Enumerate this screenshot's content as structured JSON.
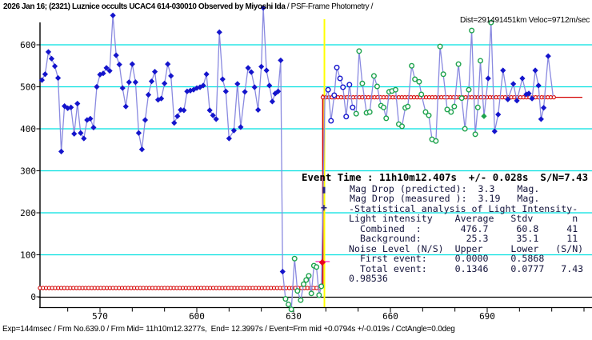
{
  "title": {
    "main_bold": "2026 Jan 16; (2321) Luznice occults UCAC4 614-030010 Observed by Miyoshi Ida",
    "main_regular": " / PSF-Frame Photometry /",
    "sub": "Dist=291491451km Veloc=9712m/sec"
  },
  "event_block": {
    "event_time": "Event Time : 11h10m12.407s  +/- 0.028s  S/N=7.43",
    "mag_lines": "Mag Drop (predicted):  3.3    Mag.\nMag Drop (measured ):  3.19   Mag.",
    "stats_lines": "-Statistical analysis of Light Intensity-\nLight intensity    Average   Stdv       n\n  Combined  :       476.7     60.8     41\n  Background:        25.3     35.1     11\nNoise Level (N/S)  Upper     Lower   (S/N)\n  First event:     0.0000    0.5868\n  Total event:     0.1346    0.0777   7.43\n0.98536"
  },
  "status_bar": "Exp=144msec / Frm No.639.0 / Frm Mid= 11h10m12.3277s,  End= 12.3997s / Event=Frm mid +0.0794s +/-0.019s / CctAngle=0.0deg",
  "chart_data": {
    "type": "line",
    "xlim": [
      551,
      722
    ],
    "ylim": [
      -27,
      650
    ],
    "x_ticks": [
      570,
      600,
      630,
      660,
      690
    ],
    "x_minor_range": [
      560,
      720
    ],
    "x_minor_step": 10,
    "y_ticks": [
      0,
      100,
      200,
      300,
      400,
      500,
      600
    ],
    "grid_color": "#00e0e0",
    "axis_color": "#000000",
    "marker_colors": {
      "blue": "#1414cc",
      "green": "#1ea34d"
    },
    "event_time_line": {
      "frame": 639.55,
      "color": "#ffff00"
    },
    "model": {
      "color": "#d40000",
      "baseline": {
        "value": 21,
        "from": 551.4,
        "to": 638.9
      },
      "transition_frame": 639.05,
      "plateau": {
        "value": 475,
        "from": 639.05,
        "to": 711
      },
      "plateau_line_to": 719.5
    },
    "annotations": {
      "error_bar": {
        "frames": [
          636.8,
          641.2
        ],
        "value": 84,
        "color": "#ff57c8"
      },
      "event_point": {
        "frame": 638.9,
        "value": 82,
        "color": "#e8001c"
      },
      "tick_marker": {
        "frame": 639.4,
        "value": 254
      },
      "plus_marker": {
        "frame": 639.4,
        "value": 212
      },
      "marker_color": "#26267e"
    },
    "series": [
      {
        "name": "light-curve",
        "line_color": "#8a8ae0",
        "points": [
          [
            552,
            516,
            "b"
          ],
          [
            553,
            530,
            "b"
          ],
          [
            554,
            583,
            "b"
          ],
          [
            555,
            567,
            "b"
          ],
          [
            556,
            549,
            "b"
          ],
          [
            557,
            521,
            "b"
          ],
          [
            558,
            346,
            "b"
          ],
          [
            559,
            454,
            "b"
          ],
          [
            560,
            449,
            "b"
          ],
          [
            561,
            451,
            "b"
          ],
          [
            562,
            388,
            "b"
          ],
          [
            563,
            460,
            "b"
          ],
          [
            564,
            390,
            "b"
          ],
          [
            565,
            377,
            "b"
          ],
          [
            566,
            421,
            "b"
          ],
          [
            567,
            424,
            "b"
          ],
          [
            568,
            403,
            "b"
          ],
          [
            569,
            500,
            "b"
          ],
          [
            570,
            529,
            "b"
          ],
          [
            571,
            532,
            "b"
          ],
          [
            572,
            545,
            "b"
          ],
          [
            573,
            538,
            "b"
          ],
          [
            574,
            670,
            "b"
          ],
          [
            575,
            575,
            "b"
          ],
          [
            576,
            553,
            "b"
          ],
          [
            577,
            497,
            "b"
          ],
          [
            578,
            453,
            "b"
          ],
          [
            579,
            511,
            "b"
          ],
          [
            580,
            554,
            "b"
          ],
          [
            581,
            511,
            "b"
          ],
          [
            582,
            390,
            "b"
          ],
          [
            583,
            351,
            "b"
          ],
          [
            584,
            421,
            "b"
          ],
          [
            585,
            481,
            "b"
          ],
          [
            586,
            513,
            "b"
          ],
          [
            587,
            536,
            "b"
          ],
          [
            588,
            469,
            "b"
          ],
          [
            589,
            472,
            "b"
          ],
          [
            590,
            508,
            "b"
          ],
          [
            591,
            554,
            "b"
          ],
          [
            592,
            526,
            "b"
          ],
          [
            593,
            414,
            "b"
          ],
          [
            594,
            430,
            "b"
          ],
          [
            595,
            445,
            "b"
          ],
          [
            596,
            444,
            "b"
          ],
          [
            597,
            489,
            "b"
          ],
          [
            598,
            491,
            "b"
          ],
          [
            599,
            493,
            "b"
          ],
          [
            600,
            497,
            "b"
          ],
          [
            601,
            499,
            "b"
          ],
          [
            602,
            503,
            "b"
          ],
          [
            603,
            530,
            "b"
          ],
          [
            604,
            444,
            "b"
          ],
          [
            605,
            432,
            "b"
          ],
          [
            606,
            423,
            "b"
          ],
          [
            607,
            630,
            "b"
          ],
          [
            608,
            518,
            "b"
          ],
          [
            609,
            489,
            "b"
          ],
          [
            610,
            377,
            "b"
          ],
          [
            611.5,
            396,
            "b"
          ],
          [
            612.6,
            507,
            "b"
          ],
          [
            613.6,
            404,
            "b"
          ],
          [
            614.9,
            488,
            "b"
          ],
          [
            615.9,
            545,
            "b"
          ],
          [
            616.9,
            535,
            "b"
          ],
          [
            617.9,
            499,
            "b"
          ],
          [
            619,
            445,
            "b"
          ],
          [
            620,
            548,
            "b"
          ],
          [
            620.6,
            688,
            "b"
          ],
          [
            621.6,
            539,
            "b"
          ],
          [
            622.5,
            503,
            "b"
          ],
          [
            623.4,
            465,
            "b"
          ],
          [
            624.3,
            484,
            "b"
          ],
          [
            625.2,
            489,
            "b"
          ],
          [
            626,
            563,
            "b"
          ],
          [
            626.6,
            60,
            "b"
          ],
          [
            627.5,
            -5,
            "g"
          ],
          [
            628.4,
            -18,
            "g"
          ],
          [
            629.3,
            -30,
            "g"
          ],
          [
            630.3,
            91,
            "g"
          ],
          [
            631.2,
            14,
            "g"
          ],
          [
            632.2,
            -8,
            "g"
          ],
          [
            633.1,
            30,
            "g"
          ],
          [
            633.9,
            40,
            "g"
          ],
          [
            634.7,
            50,
            "g"
          ],
          [
            635.5,
            8,
            "g"
          ],
          [
            636.3,
            74,
            "g"
          ],
          [
            637.1,
            71,
            "g"
          ],
          [
            637.9,
            4,
            "g"
          ],
          [
            638.6,
            25,
            "g"
          ],
          [
            639.7,
            470,
            "n"
          ],
          [
            640.7,
            493,
            "o"
          ],
          [
            641.6,
            419,
            "o"
          ],
          [
            642.6,
            480,
            "o"
          ],
          [
            643.4,
            546,
            "o"
          ],
          [
            644.4,
            520,
            "o"
          ],
          [
            645.3,
            499,
            "o"
          ],
          [
            646.3,
            429,
            "o"
          ],
          [
            647.3,
            505,
            "o"
          ],
          [
            648.3,
            451,
            "o"
          ],
          [
            649.4,
            436,
            "g"
          ],
          [
            650.3,
            585,
            "g"
          ],
          [
            651.3,
            508,
            "g"
          ],
          [
            652.6,
            438,
            "g"
          ],
          [
            653.6,
            440,
            "g"
          ],
          [
            654.9,
            526,
            "g"
          ],
          [
            655.9,
            501,
            "g"
          ],
          [
            657.1,
            455,
            "g"
          ],
          [
            657.9,
            451,
            "g"
          ],
          [
            658.7,
            425,
            "g"
          ],
          [
            659.6,
            488,
            "g"
          ],
          [
            660.5,
            490,
            "g"
          ],
          [
            661.6,
            493,
            "g"
          ],
          [
            662.6,
            411,
            "g"
          ],
          [
            663.6,
            406,
            "g"
          ],
          [
            664.6,
            450,
            "g"
          ],
          [
            665.4,
            453,
            "g"
          ],
          [
            666.6,
            550,
            "g"
          ],
          [
            667.6,
            518,
            "g"
          ],
          [
            668.9,
            512,
            "g"
          ],
          [
            669.6,
            482,
            "g"
          ],
          [
            670.9,
            440,
            "g"
          ],
          [
            671.9,
            432,
            "g"
          ],
          [
            672.9,
            375,
            "g"
          ],
          [
            674.1,
            371,
            "g"
          ],
          [
            675.4,
            596,
            "g"
          ],
          [
            676.4,
            530,
            "g"
          ],
          [
            677.6,
            446,
            "g"
          ],
          [
            678.8,
            440,
            "g"
          ],
          [
            679.8,
            453,
            "g"
          ],
          [
            681.1,
            554,
            "g"
          ],
          [
            682.1,
            473,
            "g"
          ],
          [
            683.1,
            400,
            "g"
          ],
          [
            684.3,
            493,
            "g"
          ],
          [
            685.2,
            634,
            "g"
          ],
          [
            686.3,
            387,
            "g"
          ],
          [
            687.1,
            451,
            "g"
          ],
          [
            687.9,
            562,
            "g"
          ],
          [
            689,
            430,
            "G"
          ],
          [
            690.3,
            520,
            "b"
          ],
          [
            691.2,
            653,
            "g"
          ],
          [
            692.3,
            394,
            "b"
          ],
          [
            693.4,
            434,
            "b"
          ],
          [
            694.9,
            539,
            "b"
          ],
          [
            696.4,
            470,
            "b"
          ],
          [
            698.1,
            507,
            "b"
          ],
          [
            699.2,
            467,
            "b"
          ],
          [
            700.9,
            520,
            "b"
          ],
          [
            702.1,
            482,
            "b"
          ],
          [
            702.9,
            484,
            "b"
          ],
          [
            703.9,
            472,
            "b"
          ],
          [
            704.9,
            539,
            "b"
          ],
          [
            705.9,
            503,
            "b"
          ],
          [
            706.7,
            423,
            "b"
          ],
          [
            707.5,
            450,
            "b"
          ],
          [
            708.9,
            573,
            "b"
          ],
          [
            710.4,
            478,
            "n"
          ]
        ]
      }
    ]
  }
}
